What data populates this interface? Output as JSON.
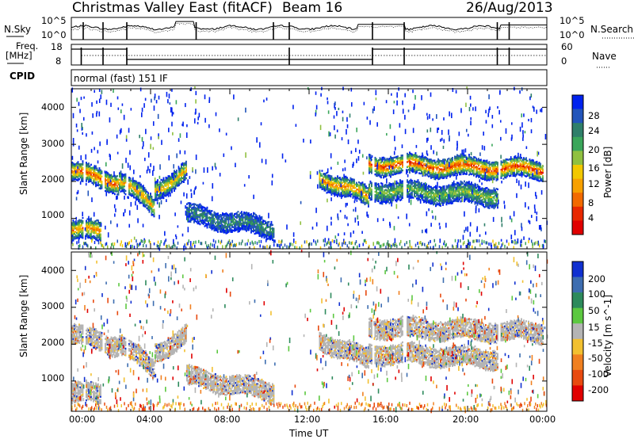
{
  "header": {
    "station": "Christmas Valley East (fitACF)",
    "beam": "Beam 16",
    "date": "26/Aug/2013"
  },
  "strips": {
    "nsky_label": "N.Sky",
    "nsky_ticks": [
      "10^5",
      "10^0"
    ],
    "nsearch_label": "N.Search",
    "nsearch_ticks": [
      "10^5",
      "10^0"
    ],
    "freq_label": "Freq.",
    "freq_unit": "[MHz]",
    "freq_ticks": [
      "18",
      "8"
    ],
    "nave_label": "Nave",
    "nave_ticks": [
      "60",
      "0"
    ],
    "cpid_label": "CPID",
    "cpid_value": "normal (fast) 151 IF"
  },
  "chart_data": [
    {
      "type": "heatmap",
      "panel": "power",
      "ylabel": "Slant Range [km]",
      "xlabel": "",
      "yticks": [
        "4000",
        "3000",
        "2000",
        "1000"
      ],
      "ylim": [
        180,
        4500
      ],
      "xlim": [
        0,
        24
      ],
      "colorbar": {
        "label": "Power [dB]",
        "ticks": [
          "28",
          "24",
          "20",
          "16",
          "12",
          "8",
          "4"
        ],
        "colors": [
          "#0022ee",
          "#2255bb",
          "#2f7f6a",
          "#3aa65a",
          "#90c040",
          "#f2c800",
          "#f7a000",
          "#f26a00",
          "#e82800",
          "#e00000"
        ]
      },
      "echo_bands": [
        {
          "t0": 0.0,
          "t1": 2.4,
          "r0": 2250,
          "r1": 1950,
          "level": 0.85
        },
        {
          "t0": 2.4,
          "t1": 4.2,
          "r0": 2050,
          "r1": 1250,
          "level": 0.7
        },
        {
          "t0": 4.2,
          "t1": 5.8,
          "r0": 1750,
          "r1": 2250,
          "level": 0.65
        },
        {
          "t0": 0.0,
          "t1": 1.5,
          "r0": 650,
          "r1": 650,
          "level": 0.75
        },
        {
          "t0": 5.8,
          "t1": 10.2,
          "r0": 1100,
          "r1": 700,
          "level": 0.25
        },
        {
          "t0": 12.5,
          "t1": 15.0,
          "r0": 2100,
          "r1": 1550,
          "level": 0.75
        },
        {
          "t0": 15.0,
          "t1": 23.8,
          "r0": 2450,
          "r1": 2300,
          "level": 0.9
        },
        {
          "t0": 15.0,
          "t1": 21.5,
          "r0": 1750,
          "r1": 1600,
          "level": 0.45
        }
      ]
    },
    {
      "type": "heatmap",
      "panel": "velocity",
      "ylabel": "Slant Range [km]",
      "xlabel": "Time UT",
      "xticks": [
        "00:00",
        "04:00",
        "08:00",
        "12:00",
        "16:00",
        "20:00",
        "00:00"
      ],
      "yticks": [
        "4000",
        "3000",
        "2000",
        "1000"
      ],
      "ylim": [
        180,
        4500
      ],
      "xlim": [
        0,
        24
      ],
      "colorbar": {
        "label": "Velocity [m s^-1]",
        "ticks": [
          "200",
          "100",
          "50",
          "15",
          "-15",
          "-50",
          "-100",
          "-200"
        ],
        "colors": [
          "#1030d0",
          "#3d6db0",
          "#2d8a5c",
          "#5cc840",
          "#b4b4b4",
          "#f2c030",
          "#f08020",
          "#e84a10",
          "#e00000"
        ]
      }
    }
  ]
}
